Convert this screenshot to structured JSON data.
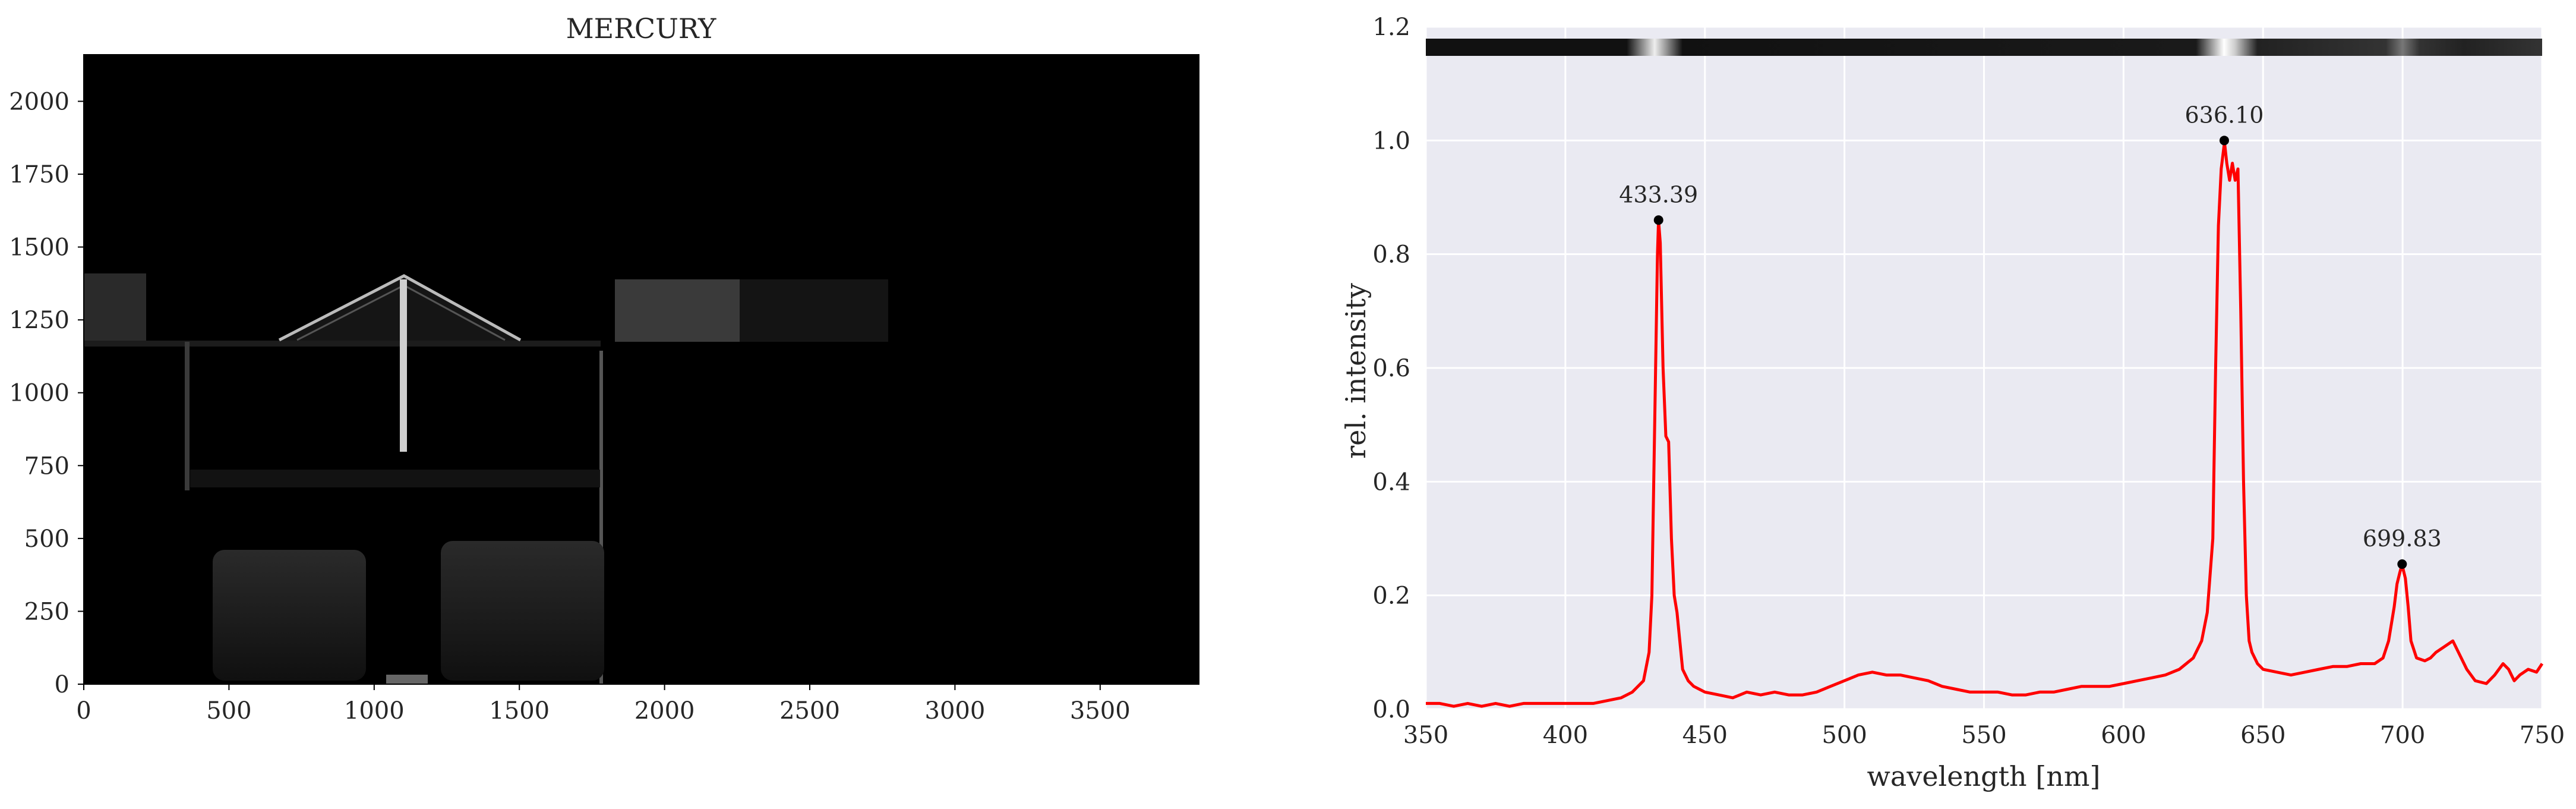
{
  "chart_data": [
    {
      "type": "image",
      "title": "MERCURY",
      "xlim": [
        0,
        3840
      ],
      "ylim": [
        0,
        2160
      ],
      "x_ticks": [
        "0",
        "500",
        "1000",
        "1500",
        "2000",
        "2500",
        "3000",
        "3500"
      ],
      "y_ticks": [
        "0",
        "250",
        "500",
        "750",
        "1000",
        "1250",
        "1500",
        "1750",
        "2000"
      ],
      "x_tick_values": [
        0,
        500,
        1000,
        1500,
        2000,
        2500,
        3000,
        3500
      ],
      "y_tick_values": [
        0,
        250,
        500,
        750,
        1000,
        1250,
        1500,
        1750,
        2000
      ],
      "colormap": "gray",
      "background": "#000000"
    },
    {
      "type": "line",
      "title": "",
      "xlabel": "wavelength [nm]",
      "ylabel": "rel. intensity",
      "xlim": [
        350,
        750
      ],
      "ylim": [
        0,
        1.2
      ],
      "grid": true,
      "background": "#eaeaf2",
      "line_color": "#ff0000",
      "x_ticks": [
        "350",
        "400",
        "450",
        "500",
        "550",
        "600",
        "650",
        "700",
        "750"
      ],
      "y_ticks": [
        "0.0",
        "0.2",
        "0.4",
        "0.6",
        "0.8",
        "1.0",
        "1.2"
      ],
      "x_tick_values": [
        350,
        400,
        450,
        500,
        550,
        600,
        650,
        700,
        750
      ],
      "y_tick_values": [
        0,
        0.2,
        0.4,
        0.6,
        0.8,
        1.0,
        1.2
      ],
      "series": [
        {
          "x": [
            350,
            355,
            360,
            365,
            370,
            375,
            380,
            385,
            390,
            395,
            400,
            405,
            410,
            415,
            420,
            424,
            426,
            428,
            430,
            431,
            432,
            433,
            433.39,
            434,
            435,
            436,
            437,
            438,
            439,
            440,
            441,
            442,
            444,
            446,
            448,
            450,
            455,
            460,
            465,
            470,
            475,
            480,
            485,
            490,
            495,
            500,
            505,
            510,
            515,
            520,
            525,
            530,
            535,
            540,
            545,
            550,
            555,
            560,
            565,
            570,
            575,
            580,
            585,
            590,
            595,
            600,
            605,
            610,
            615,
            620,
            625,
            628,
            630,
            632,
            633,
            634,
            635,
            636,
            636.1,
            637,
            638,
            639,
            640,
            641,
            642,
            643,
            644,
            645,
            646,
            648,
            650,
            655,
            660,
            665,
            670,
            675,
            680,
            685,
            690,
            693,
            695,
            697,
            698,
            699,
            699.83,
            700,
            701,
            702,
            703,
            705,
            708,
            710,
            712,
            715,
            718,
            720,
            723,
            726,
            730,
            733,
            736,
            738,
            740,
            742,
            745,
            748,
            750
          ],
          "y": [
            0.01,
            0.01,
            0.005,
            0.01,
            0.005,
            0.01,
            0.005,
            0.01,
            0.01,
            0.01,
            0.01,
            0.01,
            0.01,
            0.015,
            0.02,
            0.03,
            0.04,
            0.05,
            0.1,
            0.2,
            0.5,
            0.8,
            0.86,
            0.82,
            0.6,
            0.48,
            0.47,
            0.3,
            0.2,
            0.17,
            0.12,
            0.07,
            0.05,
            0.04,
            0.035,
            0.03,
            0.025,
            0.02,
            0.03,
            0.025,
            0.03,
            0.025,
            0.025,
            0.03,
            0.04,
            0.05,
            0.06,
            0.065,
            0.06,
            0.06,
            0.055,
            0.05,
            0.04,
            0.035,
            0.03,
            0.03,
            0.03,
            0.025,
            0.025,
            0.03,
            0.03,
            0.035,
            0.04,
            0.04,
            0.04,
            0.045,
            0.05,
            0.055,
            0.06,
            0.07,
            0.09,
            0.12,
            0.17,
            0.3,
            0.6,
            0.85,
            0.95,
            0.99,
            1.0,
            0.96,
            0.93,
            0.96,
            0.93,
            0.95,
            0.7,
            0.4,
            0.2,
            0.12,
            0.1,
            0.08,
            0.07,
            0.065,
            0.06,
            0.065,
            0.07,
            0.075,
            0.075,
            0.08,
            0.08,
            0.09,
            0.12,
            0.18,
            0.22,
            0.24,
            0.255,
            0.25,
            0.23,
            0.18,
            0.12,
            0.09,
            0.085,
            0.09,
            0.1,
            0.11,
            0.12,
            0.1,
            0.07,
            0.05,
            0.045,
            0.06,
            0.08,
            0.07,
            0.05,
            0.06,
            0.07,
            0.065,
            0.08
          ]
        }
      ],
      "peaks": [
        {
          "x": 433.39,
          "y": 0.86,
          "label": "433.39"
        },
        {
          "x": 636.1,
          "y": 1.0,
          "label": "636.10"
        },
        {
          "x": 699.83,
          "y": 0.255,
          "label": "699.83"
        }
      ]
    }
  ]
}
